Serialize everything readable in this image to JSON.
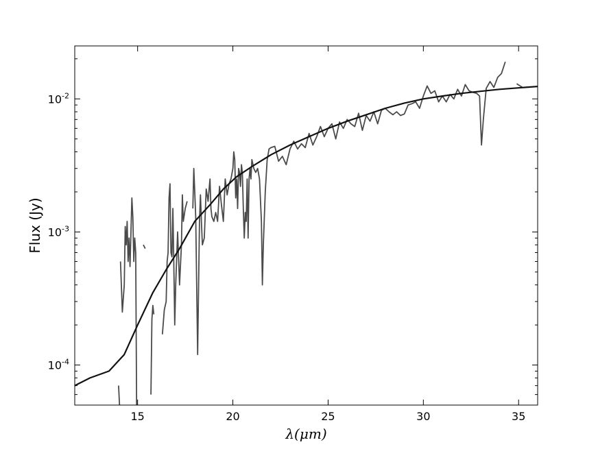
{
  "chart_data": {
    "type": "line",
    "title": "",
    "xlabel": "λ(μm)",
    "ylabel": "Flux (Jy)",
    "xlim": [
      11.7,
      36
    ],
    "ylim": [
      5e-05,
      0.025
    ],
    "yscale": "log",
    "grid": false,
    "x_ticks": [
      15,
      20,
      25,
      30,
      35
    ],
    "y_ticks": [
      {
        "value": 0.0001,
        "base": "10",
        "exp": "-4"
      },
      {
        "value": 0.001,
        "base": "10",
        "exp": "-3"
      },
      {
        "value": 0.01,
        "base": "10",
        "exp": "-2"
      }
    ],
    "series": [
      {
        "kind": "observed-spectrum",
        "color": "#4a4a4a",
        "segments": [
          [
            [
              14.0,
              7e-05
            ],
            [
              14.05,
              5e-05
            ]
          ],
          [
            [
              14.1,
              0.0006
            ],
            [
              14.2,
              0.00025
            ],
            [
              14.3,
              0.0004
            ],
            [
              14.35,
              0.0011
            ],
            [
              14.4,
              0.0008
            ],
            [
              14.45,
              0.0012
            ],
            [
              14.5,
              0.0006
            ],
            [
              14.55,
              0.0009
            ],
            [
              14.6,
              0.00055
            ],
            [
              14.7,
              0.0018
            ],
            [
              14.75,
              0.0013
            ],
            [
              14.8,
              0.0006
            ],
            [
              14.85,
              0.0009
            ],
            [
              14.9,
              0.0007
            ],
            [
              14.95,
              4e-05
            ]
          ],
          [
            [
              15.3,
              0.0008
            ],
            [
              15.4,
              0.00075
            ]
          ],
          [
            [
              15.7,
              6e-05
            ],
            [
              15.75,
              0.00022
            ],
            [
              15.8,
              0.00028
            ],
            [
              15.85,
              0.00024
            ]
          ],
          [
            [
              16.3,
              0.00017
            ],
            [
              16.4,
              0.00026
            ],
            [
              16.5,
              0.0003
            ],
            [
              16.55,
              0.0006
            ],
            [
              16.6,
              0.0007
            ],
            [
              16.65,
              0.0018
            ],
            [
              16.7,
              0.0023
            ],
            [
              16.75,
              0.0007
            ],
            [
              16.8,
              0.00065
            ],
            [
              16.85,
              0.0015
            ],
            [
              16.9,
              0.0006
            ],
            [
              16.95,
              0.0002
            ],
            [
              17.0,
              0.0004
            ],
            [
              17.1,
              0.001
            ],
            [
              17.2,
              0.0004
            ],
            [
              17.3,
              0.0008
            ],
            [
              17.35,
              0.0019
            ],
            [
              17.4,
              0.0012
            ],
            [
              17.5,
              0.0015
            ],
            [
              17.6,
              0.0017
            ]
          ],
          [
            [
              17.9,
              0.0015
            ],
            [
              17.95,
              0.003
            ],
            [
              18.0,
              0.002
            ],
            [
              18.05,
              0.0013
            ],
            [
              18.1,
              0.0004
            ],
            [
              18.15,
              0.00012
            ],
            [
              18.2,
              0.0004
            ],
            [
              18.25,
              0.0012
            ],
            [
              18.3,
              0.0019
            ],
            [
              18.35,
              0.0012
            ],
            [
              18.4,
              0.0008
            ],
            [
              18.5,
              0.0009
            ],
            [
              18.6,
              0.0021
            ],
            [
              18.7,
              0.0017
            ],
            [
              18.8,
              0.0025
            ],
            [
              18.85,
              0.0015
            ],
            [
              18.9,
              0.0013
            ],
            [
              19.0,
              0.0012
            ],
            [
              19.1,
              0.0014
            ],
            [
              19.2,
              0.0012
            ],
            [
              19.3,
              0.0022
            ],
            [
              19.4,
              0.0016
            ],
            [
              19.5,
              0.0012
            ],
            [
              19.6,
              0.0025
            ],
            [
              19.7,
              0.0019
            ],
            [
              19.8,
              0.0023
            ],
            [
              19.9,
              0.0025
            ],
            [
              20.0,
              0.003
            ],
            [
              20.05,
              0.004
            ],
            [
              20.1,
              0.0035
            ],
            [
              20.15,
              0.0018
            ],
            [
              20.2,
              0.0025
            ],
            [
              20.25,
              0.0015
            ],
            [
              20.3,
              0.003
            ],
            [
              20.35,
              0.0028
            ],
            [
              20.4,
              0.0022
            ],
            [
              20.45,
              0.0032
            ],
            [
              20.5,
              0.0028
            ],
            [
              20.55,
              0.0015
            ],
            [
              20.6,
              0.0009
            ],
            [
              20.65,
              0.0014
            ],
            [
              20.7,
              0.0012
            ],
            [
              20.75,
              0.0025
            ],
            [
              20.8,
              0.0009
            ],
            [
              20.85,
              0.0025
            ],
            [
              20.9,
              0.003
            ],
            [
              20.95,
              0.0025
            ],
            [
              21.0,
              0.0035
            ],
            [
              21.1,
              0.003
            ],
            [
              21.2,
              0.0028
            ],
            [
              21.3,
              0.003
            ],
            [
              21.4,
              0.0025
            ],
            [
              21.5,
              0.0012
            ],
            [
              21.55,
              0.0004
            ],
            [
              21.6,
              0.0008
            ],
            [
              21.7,
              0.002
            ],
            [
              21.8,
              0.0035
            ],
            [
              21.9,
              0.0042
            ],
            [
              22.0,
              0.0043
            ],
            [
              22.2,
              0.0044
            ],
            [
              22.4,
              0.0034
            ],
            [
              22.6,
              0.0037
            ],
            [
              22.8,
              0.0032
            ],
            [
              23.0,
              0.0042
            ],
            [
              23.2,
              0.0048
            ],
            [
              23.4,
              0.0042
            ],
            [
              23.6,
              0.0046
            ],
            [
              23.8,
              0.0043
            ],
            [
              24.0,
              0.0055
            ],
            [
              24.2,
              0.0045
            ],
            [
              24.4,
              0.0052
            ],
            [
              24.6,
              0.0062
            ],
            [
              24.8,
              0.0052
            ],
            [
              25.0,
              0.006
            ],
            [
              25.2,
              0.0065
            ],
            [
              25.4,
              0.005
            ],
            [
              25.6,
              0.0067
            ],
            [
              25.8,
              0.006
            ],
            [
              26.0,
              0.007
            ],
            [
              26.2,
              0.0065
            ],
            [
              26.4,
              0.0062
            ],
            [
              26.6,
              0.0078
            ],
            [
              26.8,
              0.0058
            ],
            [
              27.0,
              0.0075
            ],
            [
              27.2,
              0.0068
            ],
            [
              27.4,
              0.008
            ],
            [
              27.6,
              0.0065
            ],
            [
              27.8,
              0.0082
            ],
            [
              28.0,
              0.0085
            ],
            [
              28.2,
              0.008
            ],
            [
              28.4,
              0.0076
            ],
            [
              28.6,
              0.008
            ],
            [
              28.8,
              0.0075
            ],
            [
              29.0,
              0.0077
            ],
            [
              29.2,
              0.009
            ],
            [
              29.4,
              0.0092
            ],
            [
              29.6,
              0.0095
            ],
            [
              29.8,
              0.0085
            ],
            [
              30.0,
              0.0105
            ],
            [
              30.2,
              0.0125
            ],
            [
              30.4,
              0.011
            ],
            [
              30.6,
              0.0115
            ],
            [
              30.8,
              0.0095
            ],
            [
              31.0,
              0.0105
            ],
            [
              31.2,
              0.0095
            ],
            [
              31.4,
              0.0108
            ],
            [
              31.6,
              0.01
            ],
            [
              31.8,
              0.0118
            ],
            [
              32.0,
              0.0105
            ],
            [
              32.2,
              0.0128
            ],
            [
              32.4,
              0.0115
            ],
            [
              32.6,
              0.0112
            ],
            [
              32.8,
              0.011
            ],
            [
              32.95,
              0.0105
            ],
            [
              33.05,
              0.0045
            ],
            [
              33.15,
              0.007
            ],
            [
              33.3,
              0.012
            ],
            [
              33.5,
              0.0135
            ],
            [
              33.7,
              0.0122
            ],
            [
              33.9,
              0.0145
            ],
            [
              34.1,
              0.0155
            ],
            [
              34.3,
              0.019
            ]
          ],
          [
            [
              34.9,
              0.013
            ],
            [
              35.2,
              0.0122
            ]
          ]
        ]
      },
      {
        "kind": "model-fit",
        "color": "#111111",
        "points": [
          [
            11.7,
            7e-05
          ],
          [
            12.5,
            8e-05
          ],
          [
            13.5,
            9e-05
          ],
          [
            14.3,
            0.00012
          ],
          [
            15.0,
            0.0002
          ],
          [
            15.8,
            0.00035
          ],
          [
            16.5,
            0.00052
          ],
          [
            17.2,
            0.00075
          ],
          [
            18.0,
            0.0012
          ],
          [
            18.8,
            0.0016
          ],
          [
            19.5,
            0.0021
          ],
          [
            20.2,
            0.0026
          ],
          [
            21.0,
            0.0031
          ],
          [
            22.0,
            0.0038
          ],
          [
            23.0,
            0.0045
          ],
          [
            24.0,
            0.0052
          ],
          [
            25.0,
            0.006
          ],
          [
            26.0,
            0.0068
          ],
          [
            27.0,
            0.0076
          ],
          [
            28.0,
            0.0085
          ],
          [
            29.0,
            0.0093
          ],
          [
            30.0,
            0.01
          ],
          [
            31.0,
            0.0105
          ],
          [
            32.0,
            0.011
          ],
          [
            33.0,
            0.0114
          ],
          [
            34.0,
            0.0118
          ],
          [
            35.0,
            0.0121
          ],
          [
            36.0,
            0.0124
          ]
        ]
      }
    ]
  }
}
